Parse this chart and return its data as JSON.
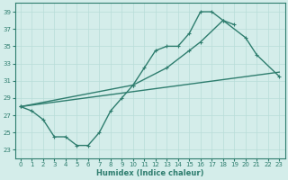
{
  "line1_x": [
    0,
    1,
    2,
    3,
    4,
    5,
    6,
    7,
    8,
    9,
    10,
    11,
    12,
    13,
    14,
    15,
    16,
    17,
    18,
    19
  ],
  "line1_y": [
    28.0,
    27.5,
    26.5,
    24.5,
    24.5,
    23.5,
    23.5,
    25.0,
    27.5,
    29.0,
    30.5,
    32.5,
    34.5,
    35.0,
    35.0,
    36.5,
    39.0,
    39.0,
    38.0,
    37.5
  ],
  "line2_x": [
    0,
    10,
    13,
    15,
    16,
    18,
    20,
    21,
    23
  ],
  "line2_y": [
    28.0,
    30.5,
    32.5,
    34.5,
    35.5,
    38.0,
    36.0,
    34.0,
    31.5
  ],
  "line3_x": [
    0,
    23
  ],
  "line3_y": [
    28.0,
    32.0
  ],
  "color": "#2e7d6e",
  "bg_color": "#d4edea",
  "grid_color": "#b8ddd8",
  "xlabel": "Humidex (Indice chaleur)",
  "ylim": [
    22,
    40
  ],
  "xlim": [
    -0.5,
    23.5
  ],
  "yticks": [
    23,
    25,
    27,
    29,
    31,
    33,
    35,
    37,
    39
  ],
  "xticks": [
    0,
    1,
    2,
    3,
    4,
    5,
    6,
    7,
    8,
    9,
    10,
    11,
    12,
    13,
    14,
    15,
    16,
    17,
    18,
    19,
    20,
    21,
    22,
    23
  ],
  "xlabel_fontsize": 6.0,
  "tick_fontsize": 5.0,
  "linewidth": 1.0,
  "markersize": 3.5
}
